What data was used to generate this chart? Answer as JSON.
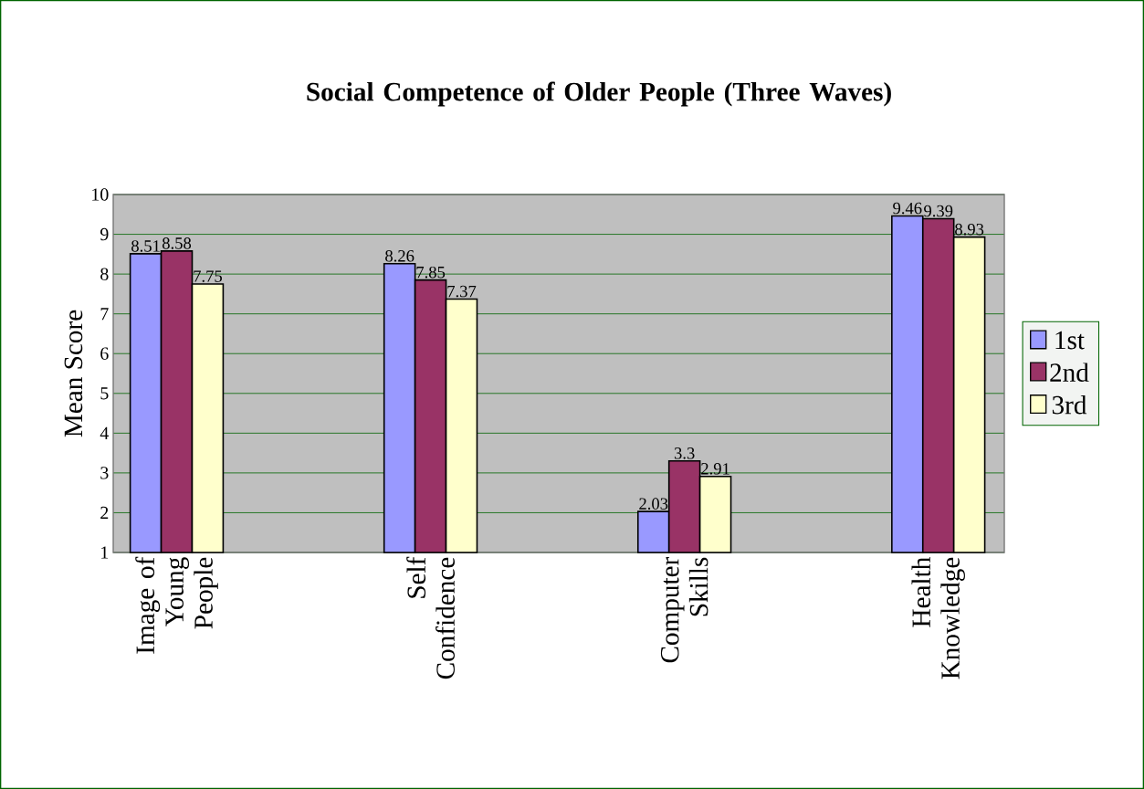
{
  "chart_data": {
    "type": "bar",
    "title": "Social Competence of Older People (Three Waves)",
    "ylabel": "Mean Score",
    "categories": [
      "Image of Young People",
      "Self Confidence",
      "Computer Skills",
      "Health Knowledge"
    ],
    "series": [
      {
        "name": "1st",
        "color": "#9999ff",
        "values": [
          8.51,
          8.26,
          2.03,
          9.46
        ]
      },
      {
        "name": "2nd",
        "color": "#993366",
        "values": [
          8.58,
          7.85,
          3.3,
          9.39
        ]
      },
      {
        "name": "3rd",
        "color": "#ffffcc",
        "values": [
          7.75,
          7.37,
          2.91,
          8.93
        ]
      }
    ],
    "ylim": [
      1,
      10
    ],
    "yticks": [
      1,
      2,
      3,
      4,
      5,
      6,
      7,
      8,
      9,
      10
    ],
    "grid": "y",
    "legend": "right",
    "data_labels": true
  }
}
